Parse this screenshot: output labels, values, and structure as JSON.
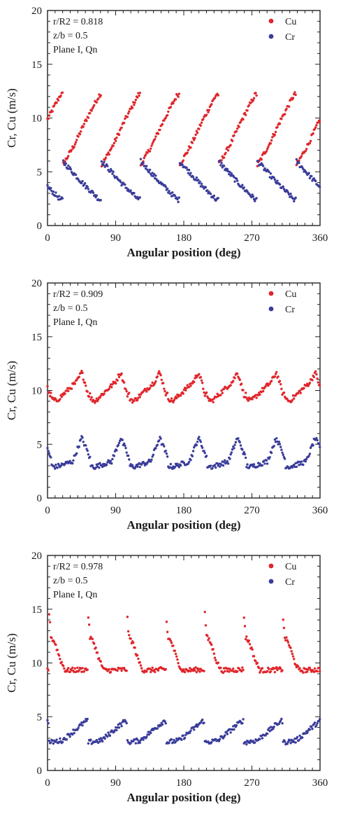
{
  "chart_data": [
    {
      "type": "scatter",
      "ylabel": "Cr, Cu (m/s)",
      "xlabel": "Angular position (deg)",
      "xlim": [
        0,
        360
      ],
      "ylim": [
        0,
        20
      ],
      "xticks": [
        "0",
        "90",
        "180",
        "270",
        "360"
      ],
      "yticks": [
        "0",
        "5",
        "10",
        "15",
        "20"
      ],
      "annotations": [
        "r/R2 = 0.818",
        "z/b = 0.5",
        "Plane I, Qn"
      ],
      "legend": "top-right",
      "grid": false,
      "blade_passages": 7,
      "series": [
        {
          "name": "Cu",
          "color": "#e0262b",
          "profile": [
            [
              0,
              5.6
            ],
            [
              0.3,
              7.5
            ],
            [
              0.6,
              9.8
            ],
            [
              0.95,
              12.2
            ]
          ]
        },
        {
          "name": "Cr",
          "color": "#3a3d9a",
          "profile": [
            [
              0,
              6.0
            ],
            [
              0.15,
              5.4
            ],
            [
              0.5,
              4.0
            ],
            [
              0.95,
              2.4
            ]
          ]
        }
      ]
    },
    {
      "type": "scatter",
      "ylabel": "Cr, Cu (m/s)",
      "xlabel": "Angular position (deg)",
      "xlim": [
        0,
        360
      ],
      "ylim": [
        0,
        20
      ],
      "xticks": [
        "0",
        "90",
        "180",
        "270",
        "360"
      ],
      "yticks": [
        "0",
        "5",
        "10",
        "15",
        "20"
      ],
      "annotations": [
        "r/R2 = 0.909",
        "z/b = 0.5",
        "Plane I, Qn"
      ],
      "legend": "top-right",
      "grid": false,
      "blade_passages": 7,
      "series": [
        {
          "name": "Cu",
          "color": "#e0262b",
          "profile": [
            [
              0,
              9.3
            ],
            [
              0.12,
              9.0
            ],
            [
              0.65,
              10.8
            ],
            [
              0.78,
              11.7
            ],
            [
              0.86,
              10.8
            ],
            [
              0.95,
              9.6
            ]
          ]
        },
        {
          "name": "Cr",
          "color": "#3a3d9a",
          "profile": [
            [
              0,
              3.0
            ],
            [
              0.12,
              2.9
            ],
            [
              0.55,
              3.4
            ],
            [
              0.78,
              5.6
            ],
            [
              0.9,
              4.6
            ],
            [
              1.0,
              3.6
            ]
          ]
        }
      ]
    },
    {
      "type": "scatter",
      "ylabel": "Cr, Cu (m/s)",
      "xlabel": "Angular position (deg)",
      "xlim": [
        0,
        360
      ],
      "ylim": [
        0,
        20
      ],
      "xticks": [
        "0",
        "90",
        "180",
        "270",
        "360"
      ],
      "yticks": [
        "0",
        "5",
        "10",
        "15",
        "20"
      ],
      "annotations": [
        "r/R2 = 0.978",
        "z/b = 0.5",
        "Plane I, Qn"
      ],
      "legend": "top-right",
      "grid": false,
      "blade_passages": 7,
      "series": [
        {
          "name": "Cu",
          "color": "#e0262b",
          "profile": [
            [
              0,
              14.8
            ],
            [
              0.05,
              12.4
            ],
            [
              0.15,
              11.9
            ],
            [
              0.3,
              10.2
            ],
            [
              0.42,
              9.3
            ],
            [
              1.0,
              9.4
            ]
          ]
        },
        {
          "name": "Cr",
          "color": "#3a3d9a",
          "profile": [
            [
              0,
              2.6
            ],
            [
              0.35,
              2.8
            ],
            [
              0.95,
              4.6
            ]
          ]
        }
      ]
    }
  ]
}
